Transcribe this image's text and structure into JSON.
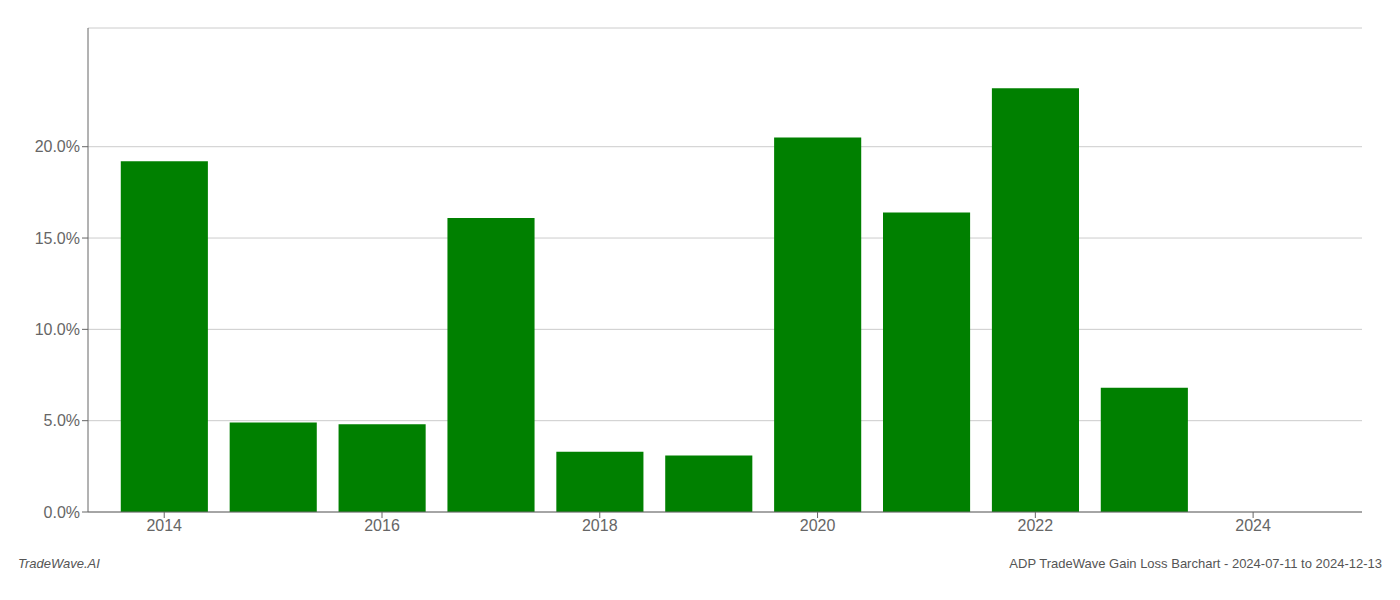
{
  "chart_data": {
    "type": "bar",
    "x": [
      2014,
      2015,
      2016,
      2017,
      2018,
      2019,
      2020,
      2021,
      2022,
      2023
    ],
    "values": [
      0.192,
      0.049,
      0.048,
      0.161,
      0.033,
      0.031,
      0.205,
      0.164,
      0.232,
      0.068
    ],
    "color": "#008000",
    "xlim": [
      2013.3,
      2025.0
    ],
    "xticks": [
      2014,
      2016,
      2018,
      2020,
      2022,
      2024
    ],
    "ylim": [
      0,
      0.265
    ],
    "yticks": [
      {
        "value": 0.0,
        "label": "0.0%"
      },
      {
        "value": 0.05,
        "label": "5.0%"
      },
      {
        "value": 0.1,
        "label": "10.0%"
      },
      {
        "value": 0.15,
        "label": "15.0%"
      },
      {
        "value": 0.2,
        "label": "20.0%"
      }
    ],
    "grid": true,
    "annotations": [
      "TradeWave.AI",
      "ADP TradeWave Gain Loss Barchart - 2024-07-11 to 2024-12-13"
    ]
  }
}
